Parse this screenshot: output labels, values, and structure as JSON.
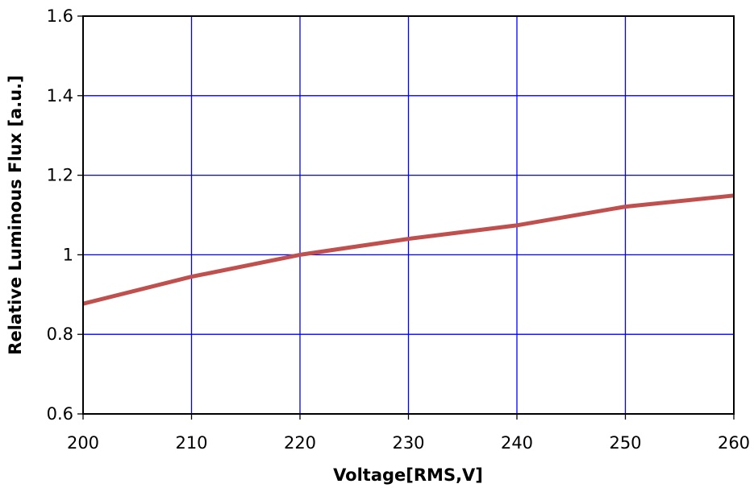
{
  "chart_data": {
    "type": "line",
    "title": "",
    "xlabel": "Voltage[RMS,V]",
    "ylabel": "Relative Luminous Flux [a.u.]",
    "xlim": [
      200,
      260
    ],
    "ylim": [
      0.6,
      1.6
    ],
    "x_ticks": [
      200,
      210,
      220,
      230,
      240,
      250,
      260
    ],
    "y_ticks": [
      0.6,
      0.8,
      1.0,
      1.2,
      1.4,
      1.6
    ],
    "x_tick_labels": [
      "200",
      "210",
      "220",
      "230",
      "240",
      "250",
      "260"
    ],
    "y_tick_labels": [
      "0.6",
      "0.8",
      "1",
      "1.2",
      "1.4",
      "1.6"
    ],
    "grid": true,
    "legend": "none",
    "colors": {
      "line": "#c0504d",
      "grid": "#0000ff",
      "frame": "#000000"
    },
    "series": [
      {
        "x": [
          200,
          210,
          220,
          230,
          240,
          250,
          260
        ],
        "values": [
          0.877,
          0.945,
          1.0,
          1.04,
          1.074,
          1.121,
          1.149
        ]
      }
    ]
  }
}
